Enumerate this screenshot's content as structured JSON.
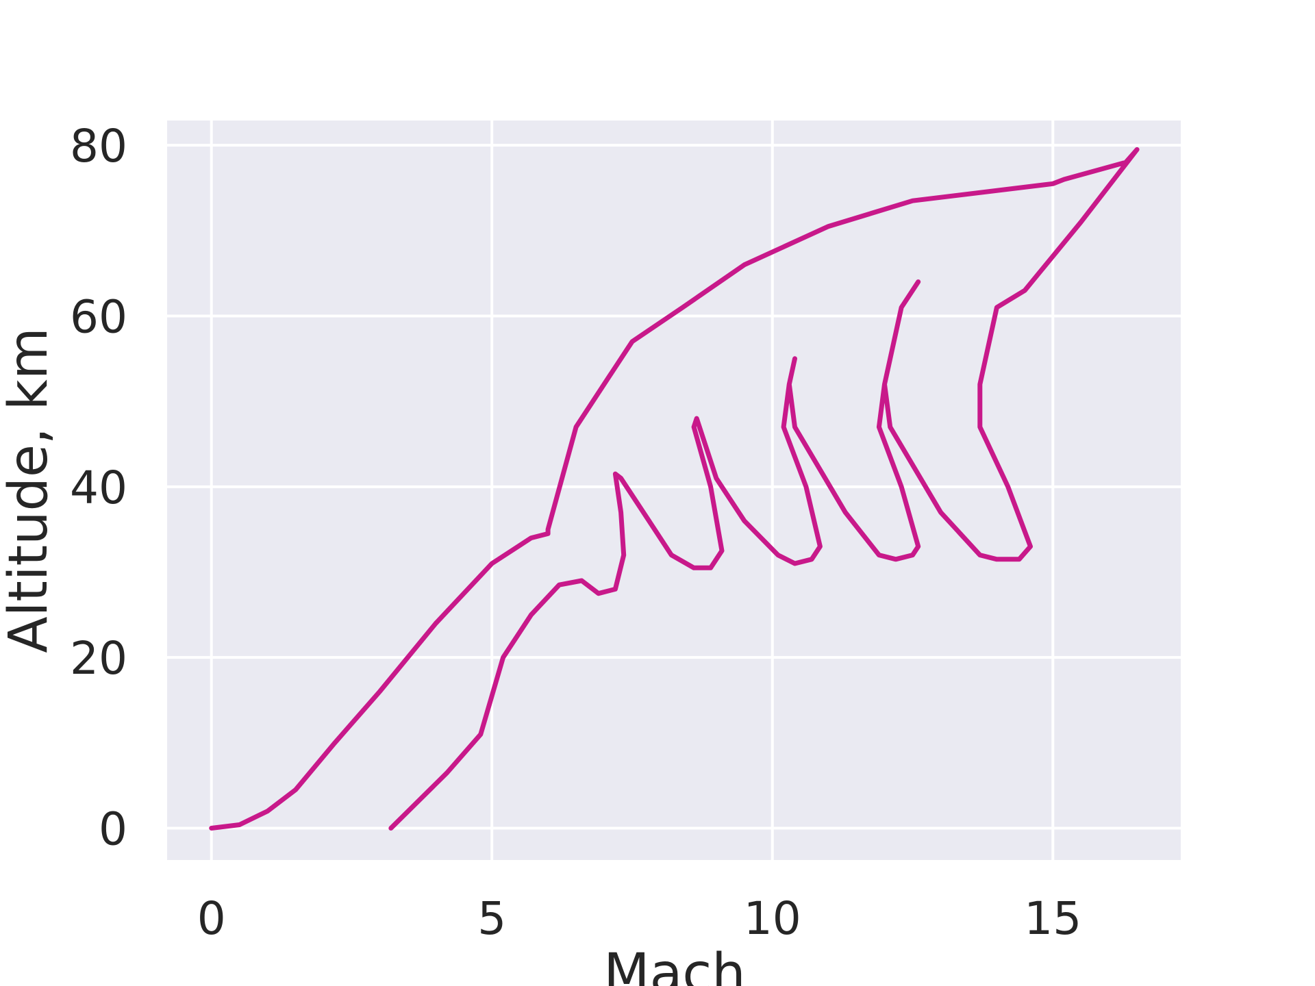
{
  "chart_data": {
    "type": "line",
    "x_label": "Mach",
    "y_label": "Altitude, km",
    "x": [
      0,
      0.5,
      1,
      1.5,
      2.2,
      3,
      4,
      5,
      5.7,
      6,
      6,
      6.5,
      7,
      7.5,
      8.4,
      9.5,
      11,
      12.5,
      15,
      15.2,
      16.3,
      16.5,
      15.5,
      14.5,
      14,
      13.7,
      13.7,
      14.2,
      14.6,
      14.4,
      14.0,
      13.7,
      13.0,
      12.1,
      12.0,
      12.3,
      12.6,
      12.3,
      12.0,
      11.9,
      12.3,
      12.6,
      12.5,
      12.2,
      11.9,
      11.3,
      10.4,
      10.3,
      10.4,
      10.3,
      10.2,
      10.6,
      10.85,
      10.7,
      10.4,
      10.1,
      9.5,
      9.0,
      8.7,
      8.65,
      8.6,
      8.9,
      9.1,
      8.9,
      8.6,
      8.2,
      7.8,
      7.3,
      7.2,
      7.3,
      7.35,
      7.2,
      6.9,
      6.6,
      6.2,
      5.7,
      5.2,
      4.8,
      4.2,
      3.2
    ],
    "series": [
      {
        "color": "#c8198a",
        "values": [
          0,
          0.4,
          2,
          4.5,
          10,
          16,
          24,
          31,
          34,
          34.5,
          35,
          47,
          52,
          57,
          61,
          66,
          70.5,
          73.5,
          75.5,
          76,
          78,
          79.5,
          71,
          63,
          61,
          52,
          47,
          40,
          33,
          31.5,
          31.5,
          32,
          37,
          47,
          52,
          61,
          64,
          61,
          52,
          47,
          40,
          33,
          32,
          31.5,
          32,
          37,
          47,
          52,
          55,
          52,
          47,
          40,
          33,
          31.5,
          31,
          32,
          36,
          41,
          47,
          48,
          47,
          40,
          32.5,
          30.5,
          30.5,
          32,
          36,
          41,
          41.5,
          37,
          32,
          28,
          27.5,
          29,
          28.5,
          25,
          20,
          11,
          6.5,
          0
        ]
      }
    ],
    "xlim": [
      -0.79,
      17.28
    ],
    "ylim": [
      -3.73,
      82.9
    ],
    "xticks": [
      0,
      5,
      10,
      15
    ],
    "yticks": [
      0,
      20,
      40,
      60,
      80
    ],
    "grid": true,
    "background": "#eaeaf2"
  }
}
